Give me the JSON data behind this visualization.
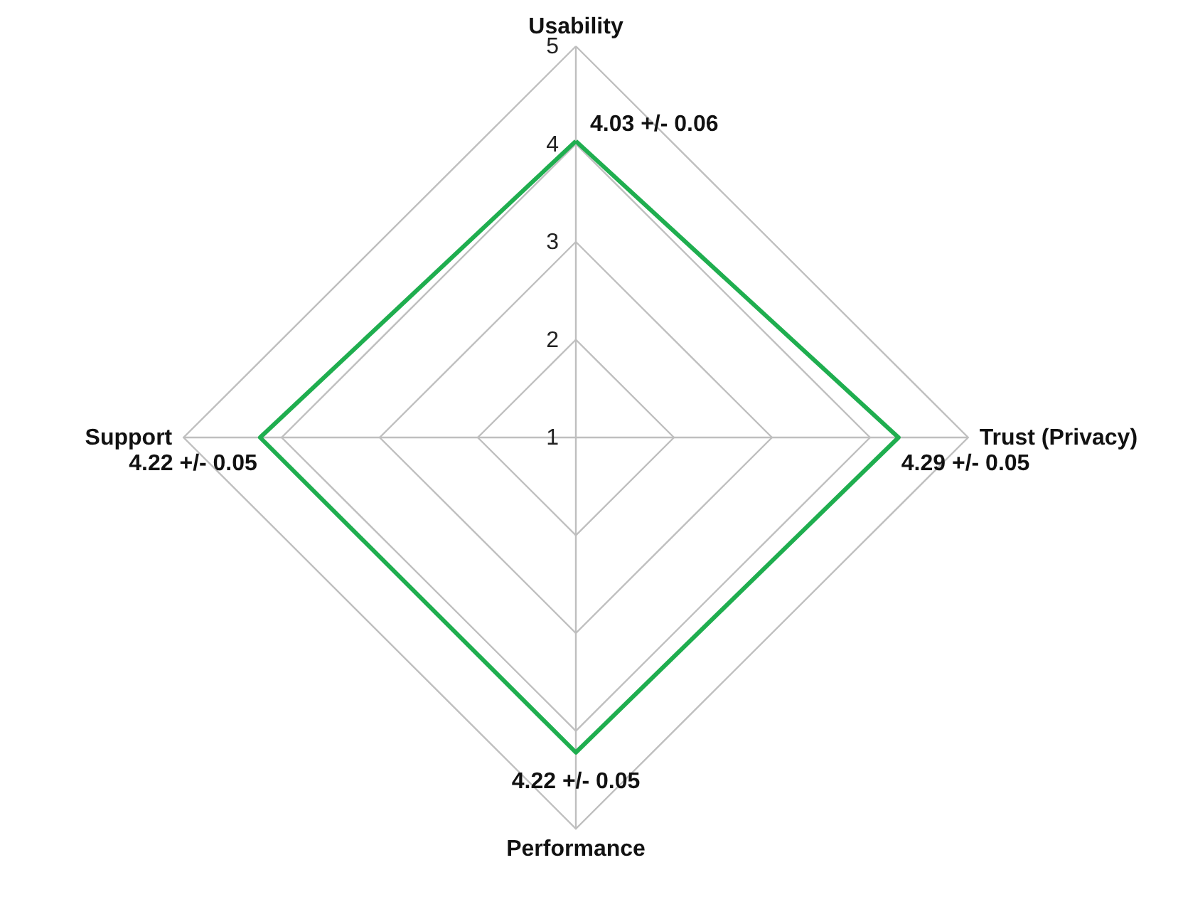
{
  "chart_data": {
    "type": "radar",
    "categories": [
      "Usability",
      "Trust (Privacy)",
      "Performance",
      "Support"
    ],
    "series": [
      {
        "color": "#1fae4f",
        "values": [
          4.03,
          4.29,
          4.22,
          4.22
        ],
        "value_labels": [
          "4.03 +/- 0.06",
          "4.29 +/- 0.05",
          "4.22 +/- 0.05",
          "4.22 +/- 0.05"
        ]
      }
    ],
    "ylim": [
      1,
      5
    ],
    "yticks": [
      1,
      2,
      3,
      4,
      5
    ],
    "grid": true
  }
}
